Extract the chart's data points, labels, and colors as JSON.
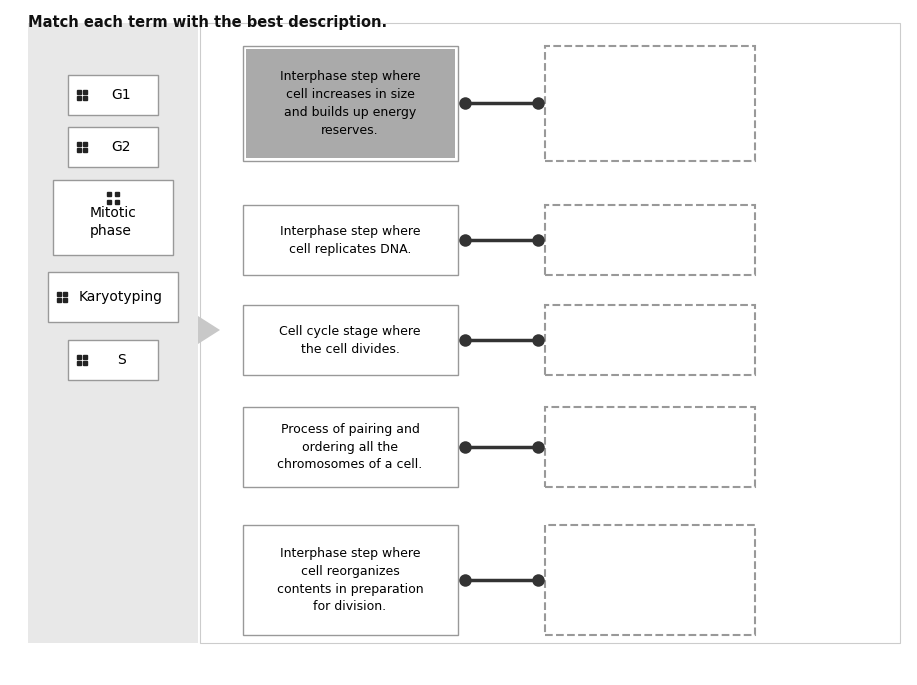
{
  "title": "Match each term with the best description.",
  "main_bg": "#ffffff",
  "left_panel_bg": "#e8e8e8",
  "left_items": [
    {
      "label": "G1",
      "multiline": false
    },
    {
      "label": "G2",
      "multiline": false
    },
    {
      "label": "Mitotic\nphase",
      "multiline": true
    },
    {
      "label": "Karyotyping",
      "multiline": false
    },
    {
      "label": "S",
      "multiline": false
    }
  ],
  "descriptions": [
    {
      "text": "Interphase step where\ncell increases in size\nand builds up energy\nreserves.",
      "highlighted": true
    },
    {
      "text": "Interphase step where\ncell replicates DNA.",
      "highlighted": false
    },
    {
      "text": "Cell cycle stage where\nthe cell divides.",
      "highlighted": false
    },
    {
      "text": "Process of pairing and\nordering all the\nchromosomes of a cell.",
      "highlighted": false
    },
    {
      "text": "Interphase step where\ncell reorganizes\ncontents in preparation\nfor division.",
      "highlighted": false
    }
  ],
  "dot_color": "#333333",
  "box_border_color": "#999999",
  "dashed_border_color": "#999999",
  "highlight_color": "#aaaaaa",
  "title_fontsize": 10.5,
  "label_fontsize": 10,
  "desc_fontsize": 9
}
